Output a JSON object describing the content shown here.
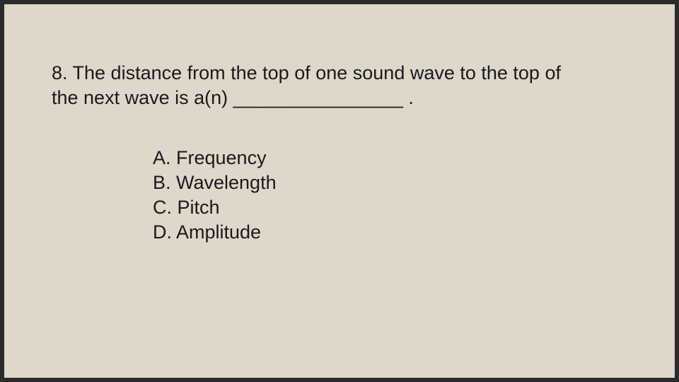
{
  "slide": {
    "background_color": "#ded7cb",
    "outer_background_color": "#2b2b2b",
    "question_number": "8",
    "question_text": "8. The distance from the top of one sound wave to the top of the next wave is a(n) ________________ .",
    "options": [
      {
        "label": "A. Frequency"
      },
      {
        "label": "B. Wavelength"
      },
      {
        "label": "C. Pitch"
      },
      {
        "label": "D. Amplitude"
      }
    ],
    "font_family": "Arial",
    "font_size_pt": 20,
    "text_color": "#1a1a1a"
  }
}
